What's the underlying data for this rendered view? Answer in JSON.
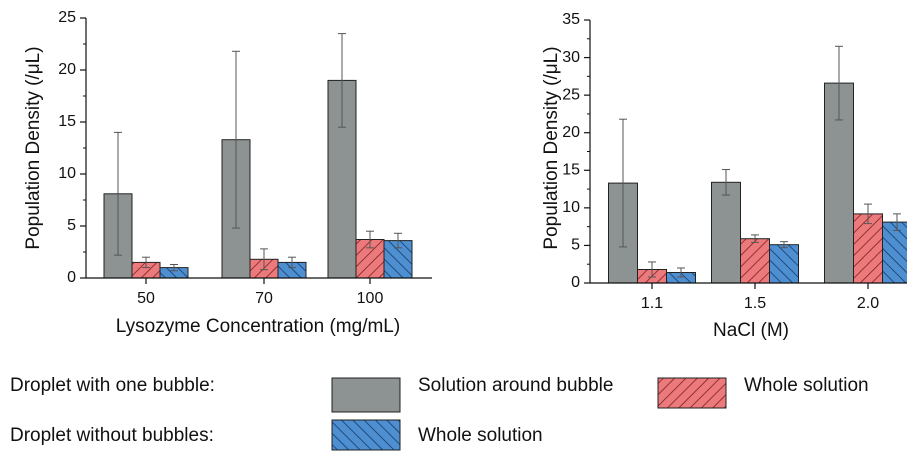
{
  "colors": {
    "solution_around_bubble": "#8d9393",
    "one_bubble_whole": "#ec7a7c",
    "no_bubble_whole": "#4d8fd1",
    "hatch_red": "#7a2020",
    "hatch_blue": "#173a66"
  },
  "legend": {
    "row1_label": "Droplet with one bubble:",
    "row2_label": "Droplet without bubbles:",
    "entry_gray": "Solution around bubble",
    "entry_red": "Whole solution",
    "entry_blue": "Whole solution"
  },
  "chart_data": [
    {
      "type": "bar",
      "xlabel": "Lysozyme Concentration (mg/mL)",
      "ylabel": "Population Density (/μL)",
      "categories": [
        "50",
        "70",
        "100"
      ],
      "ylim": [
        0,
        25
      ],
      "yticks": [
        0,
        5,
        10,
        15,
        20,
        25
      ],
      "series": [
        {
          "name": "Solution around bubble",
          "values": [
            8.1,
            13.3,
            19.0
          ],
          "errors": [
            5.9,
            8.5,
            4.5
          ]
        },
        {
          "name": "Whole solution",
          "values": [
            1.5,
            1.8,
            3.7
          ],
          "errors": [
            0.5,
            1.0,
            0.8
          ]
        },
        {
          "name": "Whole solution",
          "values": [
            1.0,
            1.5,
            3.6
          ],
          "errors": [
            0.3,
            0.5,
            0.7
          ]
        }
      ]
    },
    {
      "type": "bar",
      "xlabel": "NaCl (M)",
      "ylabel": "Population Density (/μL)",
      "categories": [
        "1.1",
        "1.5",
        "2.0"
      ],
      "ylim": [
        0,
        35
      ],
      "yticks": [
        0,
        5,
        10,
        15,
        20,
        25,
        30,
        35
      ],
      "series": [
        {
          "name": "Solution around bubble",
          "values": [
            13.3,
            13.4,
            26.6
          ],
          "errors": [
            8.5,
            1.7,
            4.9
          ]
        },
        {
          "name": "Whole solution",
          "values": [
            1.8,
            5.9,
            9.2
          ],
          "errors": [
            1.0,
            0.5,
            1.3
          ]
        },
        {
          "name": "Whole solution",
          "values": [
            1.4,
            5.1,
            8.1
          ],
          "errors": [
            0.6,
            0.4,
            1.1
          ]
        }
      ]
    }
  ]
}
